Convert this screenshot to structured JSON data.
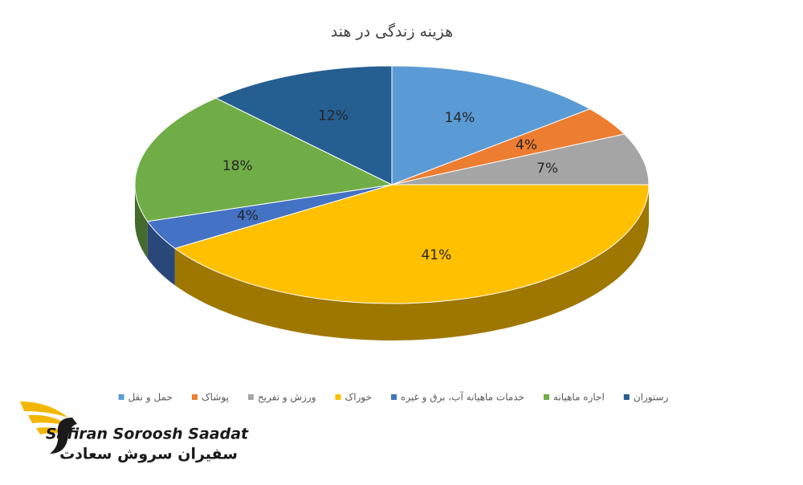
{
  "chart_data": {
    "type": "pie",
    "title": "هزینه زندگی در هند",
    "categories": [
      "حمل و نقل",
      "پوشاک",
      "ورزش و تفریح",
      "خوراک",
      "خدمات ماهیانه آب، برق و غیره",
      "اجاره ماهیانه",
      "رستوران"
    ],
    "values": [
      14,
      4,
      7,
      41,
      4,
      18,
      12
    ],
    "value_labels": [
      "14%",
      "4%",
      "7%",
      "41%",
      "4%",
      "18%",
      "12%"
    ],
    "colors": [
      "#5b9bd5",
      "#ed7d31",
      "#a5a5a5",
      "#ffc000",
      "#4472c4",
      "#70ad47",
      "#255e91"
    ],
    "legend": "bottom"
  },
  "logo": {
    "name_en": "Safiran Soroosh Saadat",
    "name_fa": "سفیران سروش سعادت"
  }
}
